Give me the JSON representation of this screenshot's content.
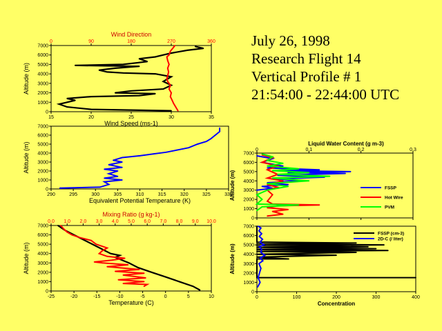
{
  "title": {
    "date": "July 26, 1998",
    "flight": "Research Flight 14",
    "profile": "Vertical Profile # 1",
    "time": "21:54:00 - 22:44:00 UTC"
  },
  "colors": {
    "black": "#000000",
    "red": "#ff0000",
    "blue": "#0000ff",
    "green": "#00ff00",
    "background": "#ffff66"
  },
  "chart_data": [
    {
      "id": "wind",
      "type": "line",
      "xlabel": "Wind Speed (ms-1)",
      "x2label": "Wind Direction",
      "ylabel": "Altitude (m)",
      "xlim": [
        15,
        35
      ],
      "x2lim": [
        0,
        360
      ],
      "ylim": [
        0,
        7000
      ],
      "xticks": [
        15,
        20,
        25,
        30,
        35
      ],
      "x2ticks": [
        0,
        90,
        180,
        270,
        360
      ],
      "yticks": [
        0,
        1000,
        2000,
        3000,
        4000,
        5000,
        6000,
        7000
      ],
      "series": [
        {
          "name": "Wind Speed",
          "color": "#000000",
          "axis": "bottom",
          "points": [
            [
              30,
              100
            ],
            [
              20,
              250
            ],
            [
              17,
              500
            ],
            [
              16,
              800
            ],
            [
              17,
              1000
            ],
            [
              18,
              1200
            ],
            [
              17,
              1400
            ],
            [
              20,
              1600
            ],
            [
              26,
              1700
            ],
            [
              28,
              1900
            ],
            [
              23,
              2000
            ],
            [
              25,
              2200
            ],
            [
              29,
              2400
            ],
            [
              30,
              2800
            ],
            [
              29,
              3200
            ],
            [
              30,
              3700
            ],
            [
              28,
              4000
            ],
            [
              24,
              4100
            ],
            [
              22,
              4200
            ],
            [
              21,
              4400
            ],
            [
              23,
              4600
            ],
            [
              26,
              4800
            ],
            [
              18,
              4900
            ],
            [
              24,
              5000
            ],
            [
              26,
              5200
            ],
            [
              27,
              5300
            ],
            [
              26,
              5600
            ],
            [
              28,
              5800
            ],
            [
              29,
              6000
            ],
            [
              30,
              6200
            ],
            [
              32,
              6500
            ],
            [
              34,
              6700
            ],
            [
              33,
              6900
            ]
          ]
        },
        {
          "name": "Wind Direction",
          "color": "#ff0000",
          "axis": "top",
          "points": [
            [
              285,
              100
            ],
            [
              280,
              500
            ],
            [
              275,
              900
            ],
            [
              272,
              1200
            ],
            [
              268,
              1600
            ],
            [
              270,
              2000
            ],
            [
              265,
              2400
            ],
            [
              268,
              2800
            ],
            [
              262,
              3200
            ],
            [
              260,
              3500
            ],
            [
              262,
              3800
            ],
            [
              264,
              4200
            ],
            [
              262,
              4600
            ],
            [
              265,
              5000
            ],
            [
              262,
              5400
            ],
            [
              260,
              5800
            ],
            [
              265,
              6000
            ],
            [
              268,
              6400
            ],
            [
              275,
              6800
            ],
            [
              278,
              7000
            ]
          ]
        }
      ]
    },
    {
      "id": "theta",
      "type": "line",
      "xlabel": "Equivalent Potential Temperature (K)",
      "ylabel": "Altitude (m)",
      "xlim": [
        290,
        330
      ],
      "ylim": [
        0,
        7000
      ],
      "xticks": [
        290,
        295,
        300,
        305,
        310,
        315,
        320,
        325,
        330
      ],
      "yticks": [
        0,
        1000,
        2000,
        3000,
        4000,
        5000,
        6000,
        7000
      ],
      "series": [
        {
          "name": "Theta-e",
          "color": "#0000ff",
          "points": [
            [
              292,
              100
            ],
            [
              301,
              200
            ],
            [
              303,
              500
            ],
            [
              302,
              800
            ],
            [
              306,
              1000
            ],
            [
              302,
              1200
            ],
            [
              305,
              1400
            ],
            [
              303,
              1700
            ],
            [
              305,
              2000
            ],
            [
              302,
              2200
            ],
            [
              306,
              2400
            ],
            [
              303,
              2700
            ],
            [
              306,
              3000
            ],
            [
              304,
              3200
            ],
            [
              306,
              3500
            ],
            [
              310,
              3700
            ],
            [
              313,
              3900
            ],
            [
              316,
              4100
            ],
            [
              319,
              4400
            ],
            [
              321,
              4600
            ],
            [
              323,
              5000
            ],
            [
              325,
              5300
            ],
            [
              326,
              5600
            ],
            [
              327,
              6000
            ],
            [
              328,
              6400
            ],
            [
              328,
              6800
            ]
          ]
        }
      ]
    },
    {
      "id": "temp_mixing",
      "type": "line",
      "xlabel": "Temperature (C)",
      "x2label": "Mixing Ratio (g kg-1)",
      "ylabel": "Altitude (m)",
      "xlim": [
        -25,
        10
      ],
      "x2lim": [
        0,
        10
      ],
      "ylim": [
        0,
        7000
      ],
      "xticks": [
        -25,
        -20,
        -15,
        -10,
        -5,
        0,
        5,
        10
      ],
      "x2ticks": [
        0.0,
        1.0,
        2.0,
        3.0,
        4.0,
        5.0,
        6.0,
        7.0,
        8.0,
        9.0,
        10.0
      ],
      "yticks": [
        0,
        1000,
        2000,
        3000,
        4000,
        5000,
        6000,
        7000
      ],
      "series": [
        {
          "name": "Temperature",
          "color": "#000000",
          "axis": "bottom",
          "points": [
            [
              7.5,
              100
            ],
            [
              6,
              500
            ],
            [
              3,
              1000
            ],
            [
              0,
              1500
            ],
            [
              -3,
              2000
            ],
            [
              -6,
              2500
            ],
            [
              -8,
              3000
            ],
            [
              -9,
              3200
            ],
            [
              -10,
              3400
            ],
            [
              -11,
              3600
            ],
            [
              -10,
              3800
            ],
            [
              -12,
              4000
            ],
            [
              -14,
              4500
            ],
            [
              -16,
              5000
            ],
            [
              -18,
              5500
            ],
            [
              -20,
              6000
            ],
            [
              -22,
              6500
            ],
            [
              -23.5,
              7000
            ]
          ]
        },
        {
          "name": "Mixing Ratio",
          "color": "#ff0000",
          "axis": "top",
          "points": [
            [
              5.8,
              500
            ],
            [
              6.0,
              700
            ],
            [
              4.5,
              800
            ],
            [
              5.8,
              1000
            ],
            [
              4.2,
              1200
            ],
            [
              5.9,
              1400
            ],
            [
              4.5,
              1700
            ],
            [
              5.8,
              1900
            ],
            [
              4.0,
              2100
            ],
            [
              5.5,
              2300
            ],
            [
              3.5,
              2600
            ],
            [
              4.8,
              2800
            ],
            [
              3.2,
              3000
            ],
            [
              2.7,
              3100
            ],
            [
              3.8,
              3300
            ],
            [
              4.6,
              3500
            ],
            [
              3.5,
              3700
            ],
            [
              3.0,
              4000
            ],
            [
              3.2,
              4300
            ],
            [
              3.5,
              4600
            ],
            [
              2.8,
              5000
            ],
            [
              2.5,
              5400
            ],
            [
              1.8,
              5700
            ],
            [
              1.3,
              6000
            ],
            [
              1.0,
              6300
            ],
            [
              0.8,
              6600
            ],
            [
              0.6,
              7000
            ]
          ]
        }
      ]
    },
    {
      "id": "lwc",
      "type": "line",
      "title": "Liquid Water Content (g m-3)",
      "ylabel": "Altitude (m)",
      "xlim": [
        0,
        0.3
      ],
      "ylim": [
        0,
        7000
      ],
      "xticks": [
        0,
        0.1,
        0.2,
        0.3
      ],
      "yticks": [
        0,
        1000,
        2000,
        3000,
        4000,
        5000,
        6000,
        7000
      ],
      "legend": [
        "FSSP",
        "Hot Wire",
        "PVM"
      ],
      "series": [
        {
          "name": "FSSP",
          "color": "#0000ff",
          "points": [
            [
              0,
              3000
            ],
            [
              0.03,
              3200
            ],
            [
              0.01,
              3400
            ],
            [
              0.06,
              3600
            ],
            [
              0.02,
              3800
            ],
            [
              0.09,
              4000
            ],
            [
              0.03,
              4200
            ],
            [
              0.13,
              4400
            ],
            [
              0.04,
              4600
            ],
            [
              0.17,
              4800
            ],
            [
              0.06,
              4900
            ],
            [
              0.18,
              5000
            ],
            [
              0.05,
              5100
            ],
            [
              0.12,
              5200
            ],
            [
              0.02,
              5400
            ],
            [
              0.05,
              5600
            ],
            [
              0.01,
              6000
            ],
            [
              0.03,
              6400
            ],
            [
              0,
              6700
            ]
          ]
        },
        {
          "name": "Hot Wire",
          "color": "#ff0000",
          "points": [
            [
              0.02,
              200
            ],
            [
              0.05,
              400
            ],
            [
              0.03,
              700
            ],
            [
              0.06,
              900
            ],
            [
              0.02,
              1100
            ],
            [
              0.04,
              1300
            ],
            [
              0.12,
              1400
            ],
            [
              0.03,
              1500
            ],
            [
              0.02,
              1800
            ],
            [
              0.03,
              2500
            ],
            [
              0.02,
              3000
            ],
            [
              0.04,
              3300
            ],
            [
              0.02,
              3600
            ],
            [
              0.05,
              4000
            ],
            [
              0.02,
              4300
            ],
            [
              0.04,
              4700
            ],
            [
              0.02,
              5200
            ],
            [
              0.04,
              5600
            ],
            [
              0.01,
              6000
            ],
            [
              0.03,
              6500
            ],
            [
              0.01,
              6800
            ]
          ]
        },
        {
          "name": "PVM",
          "color": "#00ff00",
          "points": [
            [
              0,
              800
            ],
            [
              0.01,
              1200
            ],
            [
              0.08,
              1400
            ],
            [
              0,
              1500
            ],
            [
              0.01,
              2000
            ],
            [
              0,
              2500
            ],
            [
              0.02,
              3000
            ],
            [
              0.06,
              3400
            ],
            [
              0.02,
              3700
            ],
            [
              0.1,
              4000
            ],
            [
              0.03,
              4300
            ],
            [
              0.14,
              4500
            ],
            [
              0.04,
              4700
            ],
            [
              0.1,
              4900
            ],
            [
              0.03,
              5100
            ],
            [
              0.08,
              5300
            ],
            [
              0.02,
              5600
            ],
            [
              0.05,
              5900
            ],
            [
              0.02,
              6200
            ],
            [
              0.03,
              6600
            ],
            [
              0.01,
              6900
            ]
          ]
        }
      ]
    },
    {
      "id": "conc",
      "type": "line",
      "xlabel": "Concentration",
      "ylabel": "Altitude (m)",
      "xlim": [
        0,
        400
      ],
      "ylim": [
        0,
        7000
      ],
      "xticks": [
        0,
        100,
        200,
        300,
        400
      ],
      "yticks": [
        0,
        1000,
        2000,
        3000,
        4000,
        5000,
        6000,
        7000
      ],
      "legend": [
        "FSSP (cm-3)",
        "2D-C (/ liter)"
      ],
      "series": [
        {
          "name": "FSSP (cm-3)",
          "color": "#000000",
          "points": [
            [
              0,
              1500
            ],
            [
              400,
              1500
            ],
            [
              0,
              1500
            ],
            [
              0,
              3500
            ],
            [
              80,
              3500
            ],
            [
              0,
              3700
            ],
            [
              200,
              3900
            ],
            [
              0,
              4000
            ],
            [
              250,
              4200
            ],
            [
              0,
              4300
            ],
            [
              330,
              4400
            ],
            [
              0,
              4500
            ],
            [
              300,
              4600
            ],
            [
              0,
              4700
            ],
            [
              280,
              4800
            ],
            [
              0,
              4900
            ],
            [
              320,
              5000
            ],
            [
              0,
              5100
            ],
            [
              250,
              5200
            ],
            [
              0,
              5300
            ],
            [
              0,
              7000
            ]
          ]
        },
        {
          "name": "2D-C (/ liter)",
          "color": "#0000ff",
          "points": [
            [
              2,
              500
            ],
            [
              8,
              1000
            ],
            [
              3,
              1500
            ],
            [
              10,
              2500
            ],
            [
              5,
              3000
            ],
            [
              15,
              3300
            ],
            [
              8,
              3600
            ],
            [
              20,
              3900
            ],
            [
              10,
              4200
            ],
            [
              12,
              4500
            ],
            [
              6,
              4800
            ],
            [
              18,
              5000
            ],
            [
              8,
              5300
            ],
            [
              14,
              5600
            ],
            [
              6,
              5900
            ],
            [
              12,
              6200
            ],
            [
              5,
              6500
            ],
            [
              10,
              6800
            ],
            [
              3,
              7000
            ]
          ]
        }
      ]
    }
  ]
}
